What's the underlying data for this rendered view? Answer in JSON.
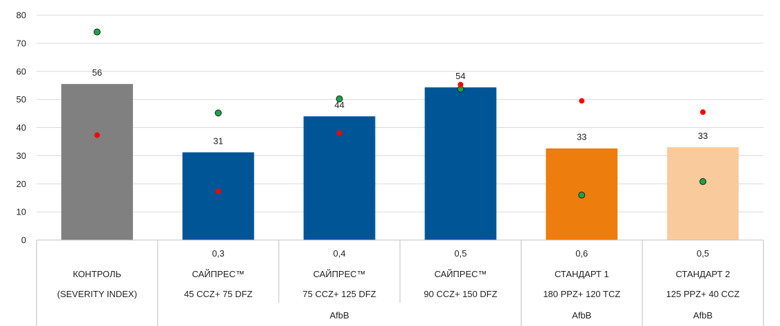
{
  "chart_data": {
    "type": "bar",
    "ylim": [
      0,
      80
    ],
    "yticks": [
      "0",
      "10",
      "20",
      "30",
      "40",
      "50",
      "60",
      "70",
      "80"
    ],
    "grid": true,
    "legend": "none",
    "categories": [
      {
        "rate": "",
        "line1": "КОНТРОЛЬ",
        "line2": "(SEVERITY INDEX)"
      },
      {
        "rate": "0,3",
        "line1": "САЙПРЕС™",
        "line2": "45 CCZ+ 75 DFZ"
      },
      {
        "rate": "0,4",
        "line1": "САЙПРЕС™",
        "line2": "75 CCZ+ 125 DFZ"
      },
      {
        "rate": "0,5",
        "line1": "САЙПРЕС™",
        "line2": "90 CCZ+ 150 DFZ"
      },
      {
        "rate": "0,6",
        "line1": "СТАНДАРТ 1",
        "line2": "180 PPZ+ 120 TCZ"
      },
      {
        "rate": "0,5",
        "line1": "СТАНДАРТ 2",
        "line2": "125 PPZ+ 40 CCZ"
      }
    ],
    "groups": [
      {
        "label": "AfbB",
        "from": 1,
        "to": 3
      },
      {
        "label": "AfbB",
        "from": 4,
        "to": 4
      },
      {
        "label": "AfbB",
        "from": 5,
        "to": 5
      }
    ],
    "bars": {
      "values": [
        55.5,
        31.2,
        44.0,
        54.3,
        32.6,
        33.0
      ],
      "labels": [
        "56",
        "31",
        "44",
        "54",
        "33",
        "33"
      ],
      "colors": [
        "#808080",
        "#005596",
        "#005596",
        "#005596",
        "#ED7D0D",
        "#F9CB9C"
      ]
    },
    "series": [
      {
        "marker_color": "#1BA34A",
        "values": [
          74.0,
          45.2,
          50.2,
          53.7,
          16.0,
          20.8
        ]
      },
      {
        "marker_color": "#FF0000",
        "values": [
          37.3,
          17.3,
          38.0,
          55.3,
          49.5,
          45.5
        ]
      }
    ]
  }
}
